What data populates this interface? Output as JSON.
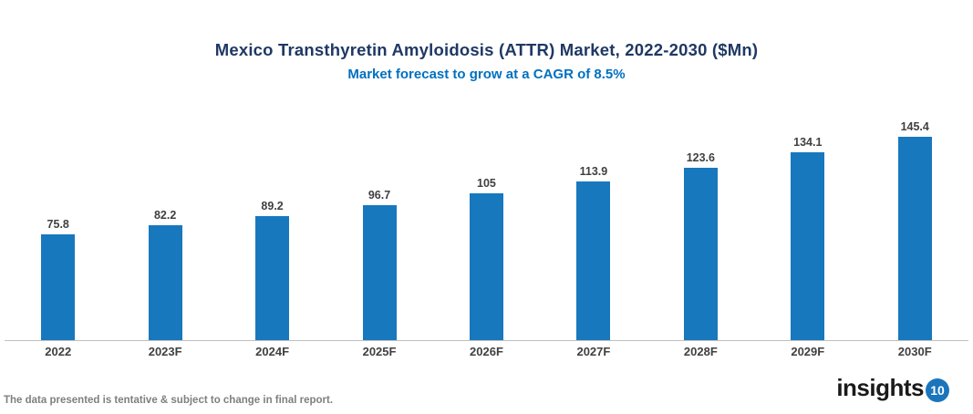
{
  "header": {
    "title": "Mexico Transthyretin Amyloidosis (ATTR) Market, 2022-2030 ($Mn)",
    "subtitle": "Market forecast to grow at a CAGR of 8.5%"
  },
  "chart_data": {
    "type": "bar",
    "title": "Mexico Transthyretin Amyloidosis (ATTR) Market, 2022-2030 ($Mn)",
    "subtitle": "Market forecast to grow at a CAGR of 8.5%",
    "categories": [
      "2022",
      "2023F",
      "2024F",
      "2025F",
      "2026F",
      "2027F",
      "2028F",
      "2029F",
      "2030F"
    ],
    "values": [
      75.8,
      82.2,
      89.2,
      96.7,
      105,
      113.9,
      123.6,
      134.1,
      145.4
    ],
    "value_labels": [
      "75.8",
      "82.2",
      "89.2",
      "96.7",
      "105",
      "113.9",
      "123.6",
      "134.1",
      "145.4"
    ],
    "xlabel": "",
    "ylabel": "",
    "ylim": [
      0,
      160
    ],
    "grid": false,
    "legend": false,
    "bar_color": "#1778BE"
  },
  "footer": {
    "disclaimer": "The data presented is tentative & subject to change in final report.",
    "logo_text": "insights",
    "logo_badge": "10"
  },
  "colors": {
    "title": "#1F3864",
    "subtitle": "#0070C0",
    "bar": "#1778BE",
    "label": "#404040",
    "axis_line": "#BFBFBF",
    "disclaimer": "#7F7F7F",
    "logo_badge_bg": "#1B75BC"
  }
}
